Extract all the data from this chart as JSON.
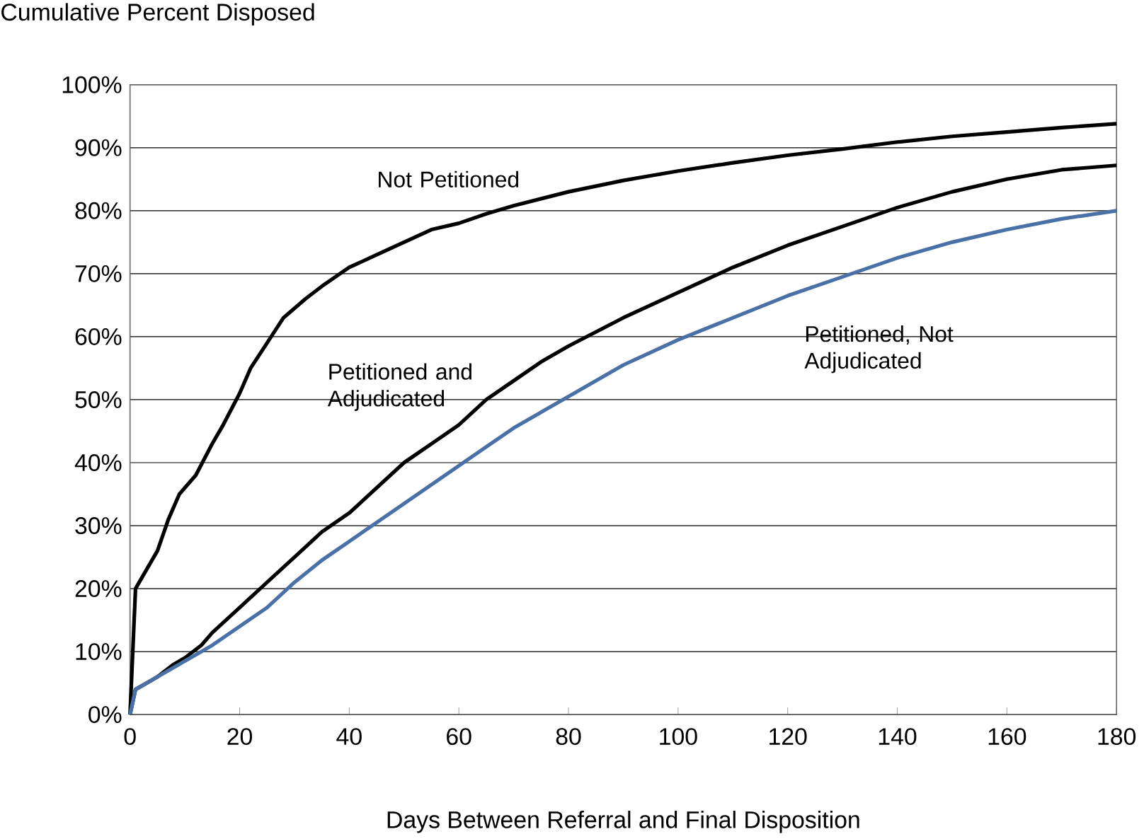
{
  "chart_data": {
    "type": "line",
    "ylabel": "Cumulative Percent Disposed",
    "xlabel": "Days Between Referral and Final Disposition",
    "xlim": [
      0,
      180
    ],
    "xticks": [
      0,
      20,
      40,
      60,
      80,
      100,
      120,
      140,
      160,
      180
    ],
    "ylim": [
      0,
      100
    ],
    "yticks": [
      {
        "value": 0,
        "label": "0%"
      },
      {
        "value": 10,
        "label": "10%"
      },
      {
        "value": 20,
        "label": "20%"
      },
      {
        "value": 30,
        "label": "30%"
      },
      {
        "value": 40,
        "label": "40%"
      },
      {
        "value": 50,
        "label": "50%"
      },
      {
        "value": 60,
        "label": "60%"
      },
      {
        "value": 70,
        "label": "70%"
      },
      {
        "value": 80,
        "label": "80%"
      },
      {
        "value": 90,
        "label": "90%"
      },
      {
        "value": 100,
        "label": "100%"
      }
    ],
    "grid": "y",
    "legend": false,
    "marker": "none",
    "line_style": "solid",
    "series": [
      {
        "name": "Not Petitioned",
        "color": "#000000",
        "x": [
          0,
          1,
          3,
          5,
          7,
          9,
          12,
          15,
          17,
          20,
          22,
          25,
          28,
          32,
          35,
          40,
          45,
          50,
          55,
          60,
          65,
          70,
          80,
          90,
          100,
          110,
          120,
          130,
          140,
          150,
          160,
          170,
          180
        ],
        "values": [
          0,
          20,
          23,
          26,
          31,
          35,
          38,
          43,
          46,
          51,
          55,
          59,
          63,
          66,
          68,
          71,
          73,
          75,
          77,
          78,
          79.5,
          80.8,
          83,
          84.8,
          86.3,
          87.6,
          88.8,
          89.8,
          90.9,
          91.8,
          92.5,
          93.2,
          93.8
        ]
      },
      {
        "name": "Petitioned and Adjudicated",
        "color": "#000000",
        "x": [
          0,
          1,
          3,
          5,
          8,
          10,
          13,
          15,
          20,
          25,
          30,
          35,
          40,
          45,
          50,
          55,
          60,
          65,
          70,
          75,
          80,
          90,
          100,
          110,
          120,
          130,
          140,
          150,
          160,
          170,
          180
        ],
        "values": [
          0,
          4,
          5,
          6,
          8,
          9,
          11,
          13,
          17,
          21,
          25,
          29,
          32,
          36,
          40,
          43,
          46,
          50,
          53,
          56,
          58.5,
          63,
          67,
          71,
          74.5,
          77.5,
          80.5,
          83,
          85,
          86.5,
          87.2
        ]
      },
      {
        "name": "Petitioned, Not Adjudicated",
        "color": "#4a70a8",
        "x": [
          0,
          1,
          3,
          5,
          10,
          15,
          20,
          25,
          30,
          35,
          40,
          45,
          50,
          55,
          60,
          65,
          70,
          80,
          90,
          100,
          110,
          120,
          130,
          140,
          150,
          160,
          170,
          180
        ],
        "values": [
          0,
          4,
          5,
          6,
          8.5,
          11,
          14,
          17,
          21,
          24.5,
          27.5,
          30.5,
          33.5,
          36.5,
          39.5,
          42.5,
          45.5,
          50.5,
          55.5,
          59.5,
          63,
          66.5,
          69.5,
          72.5,
          75,
          77,
          78.7,
          80
        ]
      }
    ]
  }
}
